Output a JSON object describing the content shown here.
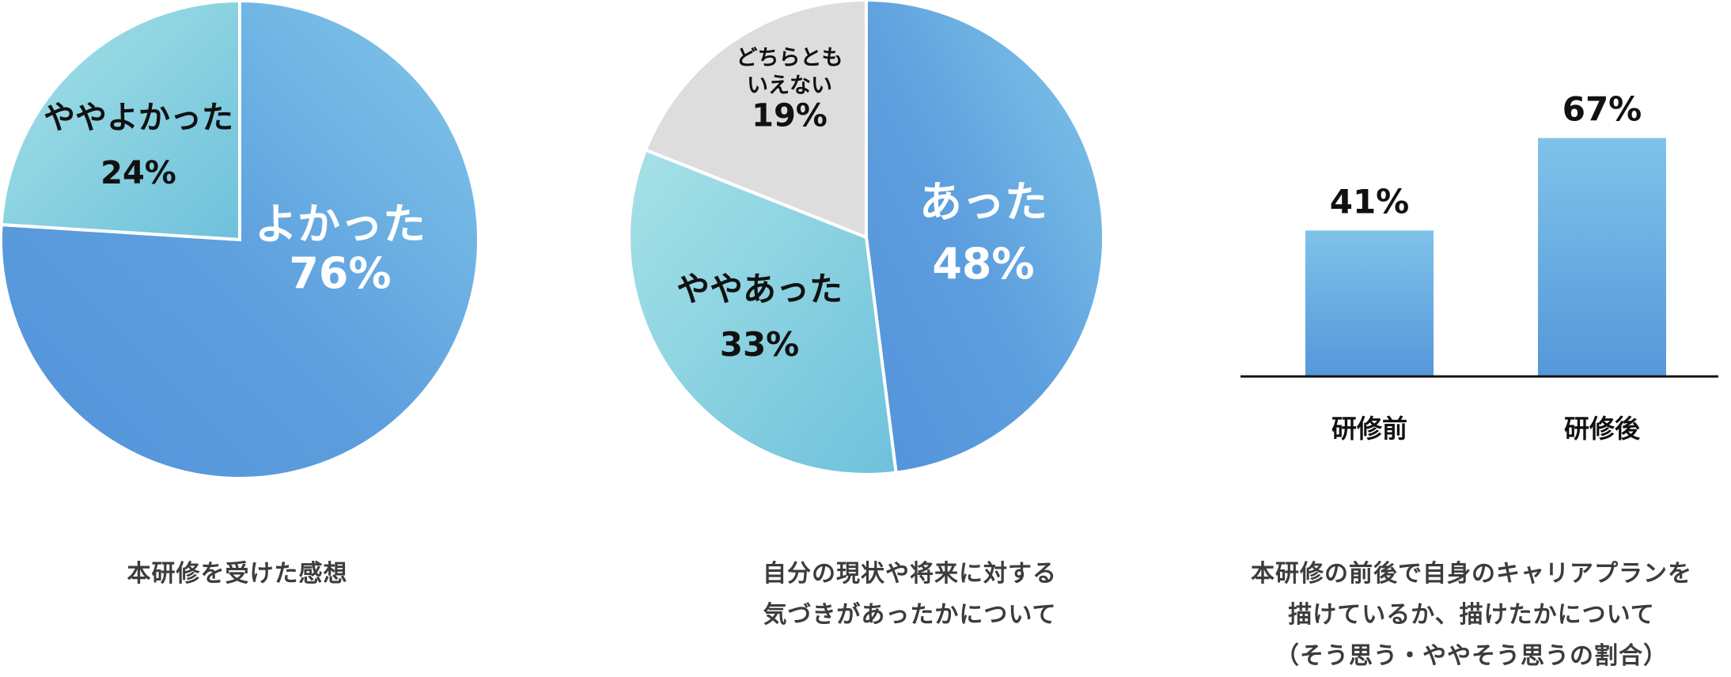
{
  "colors": {
    "blue_dark": "#5393da",
    "blue_light": "#82c9ea",
    "teal_dark": "#6ec1dc",
    "teal_light": "#a6e2e6",
    "gray": "#dddddd",
    "label_dark": "#111111",
    "label_white": "#ffffff",
    "axis": "#111111",
    "caption": "#3c3c3c"
  },
  "chart_data": [
    {
      "type": "pie",
      "slices": [
        {
          "label": "よかった",
          "value": 76,
          "value_text": "76%",
          "color": "blue",
          "label_color": "white"
        },
        {
          "label": "ややよかった",
          "value": 24,
          "value_text": "24%",
          "color": "teal",
          "label_color": "dark"
        }
      ],
      "caption": [
        "本研修を受けた感想"
      ]
    },
    {
      "type": "pie",
      "slices": [
        {
          "label": "あった",
          "value": 48,
          "value_text": "48%",
          "color": "blue",
          "label_color": "white"
        },
        {
          "label": "ややあった",
          "value": 33,
          "value_text": "33%",
          "color": "teal",
          "label_color": "dark"
        },
        {
          "label": "どちらとも\nいえない",
          "value": 19,
          "value_text": "19%",
          "color": "gray",
          "label_color": "dark"
        }
      ],
      "caption": [
        "自分の現状や将来に対する",
        "気づきがあったかについて"
      ]
    },
    {
      "type": "bar",
      "categories": [
        "研修前",
        "研修後"
      ],
      "values": [
        41,
        67
      ],
      "value_texts": [
        "41%",
        "67%"
      ],
      "ylim": [
        0,
        100
      ],
      "caption": [
        "本研修の前後で自身のキャリアプランを",
        "描けているか、描けたかについて",
        "（そう思う・ややそう思うの割合）"
      ]
    }
  ]
}
